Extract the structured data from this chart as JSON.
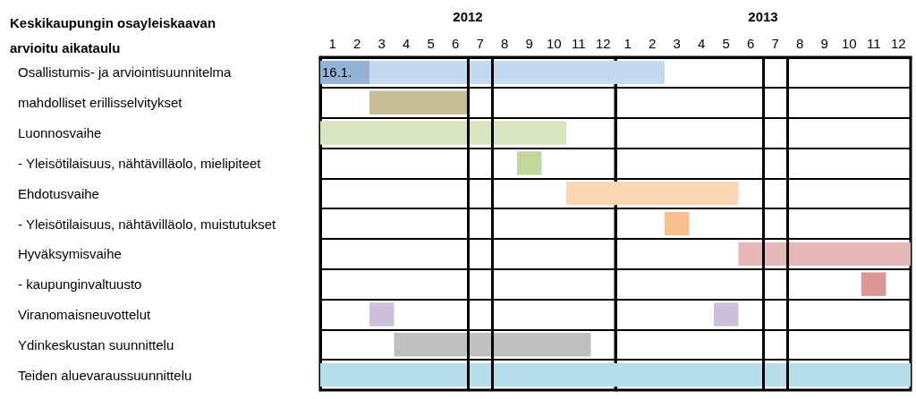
{
  "chart_data": [
    {
      "type": "bar",
      "orientation": "horizontal",
      "title": "Keskikaupungin osayleiskaavan\narvioitu aikataulu",
      "x2label": "2012",
      "categories": [
        "Osallistumis- ja arviointisuunnitelma",
        "mahdolliset erillisselvitykset",
        "Luonnosvaihe",
        "- Yleisötilaisuus, nähtävilläolo, mielipiteet",
        "Ehdotusvaihe",
        "- Yleisötilaisuus, nähtävilläolo, muistutukset",
        "Hyväksymisvaihe",
        "- kaupunginvaltuusto",
        "Viranomaisneuvottelut",
        "Ydinkeskustan suunnittelu",
        "Teiden aluevaraussuunnittelu"
      ],
      "series": [
        {
          "base": [
            0.5,
            2.5,
            0.5,
            8.5,
            10.5,
            null,
            null,
            null,
            2.5,
            3.5,
            0.5
          ],
          "values": [
            2,
            4,
            10,
            1,
            2,
            null,
            null,
            null,
            1,
            8,
            12
          ],
          "colors": [
            "#95b3d7",
            "#c4bd97",
            "#d7e4bd",
            "#c3d69b",
            "#fcd5b5",
            null,
            null,
            null,
            "#ccc0da",
            "#bfbfbf",
            "#b7dde8"
          ]
        },
        {
          "base": [
            2.5,
            null,
            null,
            null,
            null,
            null,
            null,
            null,
            null,
            null,
            null
          ],
          "values": [
            10,
            null,
            null,
            null,
            null,
            null,
            null,
            null,
            null,
            null,
            null
          ],
          "colors": [
            "#c5d9f1",
            null,
            null,
            null,
            null,
            null,
            null,
            null,
            null,
            null,
            null
          ]
        }
      ],
      "xlim": [
        0.5,
        12.5
      ],
      "xticks": [
        1,
        2,
        3,
        4,
        5,
        6,
        7,
        8,
        9,
        10,
        11,
        12
      ],
      "ref_lines": [
        {
          "axis": "x",
          "value": 6.5,
          "color": "#000000"
        },
        {
          "axis": "x",
          "value": 7.5,
          "color": "#000000"
        }
      ],
      "annotations": [
        {
          "text": "16.1.",
          "x": 0.5,
          "y": "Osallistumis- ja arviointisuunnitelma"
        }
      ],
      "grid": "y"
    },
    {
      "type": "bar",
      "orientation": "horizontal",
      "x2label": "2013",
      "tick_labels": "x",
      "categories": [
        null,
        null,
        null,
        null,
        null,
        null,
        null,
        null,
        null,
        null,
        null
      ],
      "series": [
        {
          "base": [
            0.5,
            null,
            null,
            null,
            0.5,
            2.5,
            5.5,
            10.5,
            4.5,
            null,
            0.5
          ],
          "values": [
            2,
            null,
            null,
            null,
            5,
            1,
            7,
            1,
            1,
            null,
            12
          ],
          "colors": [
            "#c5d9f1",
            null,
            null,
            null,
            "#fcd5b5",
            "#fac090",
            "#e6b9b8",
            "#d99694",
            "#ccc0da",
            null,
            "#b7dde8"
          ]
        }
      ],
      "xlim": [
        0.5,
        12.5
      ],
      "xticks": [
        1,
        2,
        3,
        4,
        5,
        6,
        7,
        8,
        9,
        10,
        11,
        12
      ],
      "ref_lines": [
        {
          "axis": "x",
          "value": 6.5,
          "color": "#000000"
        },
        {
          "axis": "x",
          "value": 7.5,
          "color": "#000000"
        }
      ],
      "grid": "y"
    }
  ]
}
